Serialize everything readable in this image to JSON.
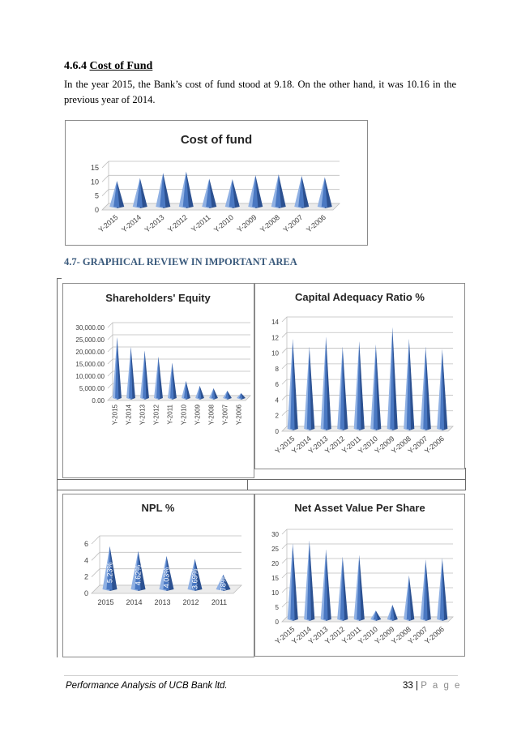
{
  "heading": {
    "number": "4.6.4",
    "title": "Cost of Fund"
  },
  "intro": "In the year 2015, the Bank’s cost of fund stood at 9.18. On the other hand, it was 10.16 in the previous year of 2014.",
  "subheading": "4.7- GRAPHICAL REVIEW IN IMPORTANT AREA",
  "footer": {
    "left": "Performance Analysis of UCB Bank ltd.",
    "page_num": "33",
    "separator": "|",
    "page_word": "P a g e"
  },
  "colors": {
    "bar": "#4a78c2",
    "bar_dark": "#2c5191",
    "bar_light": "#8fb0e3",
    "grid": "#bfbfbf",
    "text": "#404040"
  },
  "chart_data": [
    {
      "id": "cost",
      "type": "bar",
      "title": "Cost of fund",
      "categories": [
        "Y-2015",
        "Y-2014",
        "Y-2013",
        "Y-2012",
        "Y-2011",
        "Y-2010",
        "Y-2009",
        "Y-2008",
        "Y-2007",
        "Y-2006"
      ],
      "values": [
        9.18,
        10.16,
        12,
        12.5,
        10,
        9.8,
        11.2,
        11.5,
        11,
        10.5
      ],
      "ylim": [
        0,
        15
      ],
      "yticks": [
        "0",
        "5",
        "10",
        "15"
      ]
    },
    {
      "id": "equity",
      "type": "bar",
      "title": "Shareholders'  Equity",
      "categories": [
        "Y-2015",
        "Y-2014",
        "Y-2013",
        "Y-2012",
        "Y-2011",
        "Y-2010",
        "Y-2009",
        "Y-2008",
        "Y-2007",
        "Y-2006"
      ],
      "values": [
        25000,
        21000,
        19500,
        17000,
        14500,
        7000,
        5000,
        4000,
        3000,
        2000
      ],
      "ylim": [
        0,
        30000
      ],
      "yticks": [
        "0.00",
        "5,000.00",
        "10,000.00",
        "15,000.00",
        "20,000.00",
        "25,000.00",
        "30,000.00"
      ]
    },
    {
      "id": "car",
      "type": "bar",
      "title": "Capital  Adequacy  Ratio %",
      "categories": [
        "Y-2015",
        "Y-2014",
        "Y-2013",
        "Y-2012",
        "Y-2011",
        "Y-2010",
        "Y-2009",
        "Y-2008",
        "Y-2007",
        "Y-2006"
      ],
      "values": [
        11.5,
        10.5,
        11.8,
        10.5,
        11.2,
        10.8,
        13,
        11.5,
        10.5,
        10.2
      ],
      "ylim": [
        0,
        14
      ],
      "yticks": [
        "0",
        "2",
        "4",
        "6",
        "8",
        "10",
        "12",
        "14"
      ]
    },
    {
      "id": "npl",
      "type": "bar",
      "title": "NPL %",
      "categories": [
        "2015",
        "2014",
        "2013",
        "2012",
        "2011"
      ],
      "values": [
        5.23,
        4.62,
        4.03,
        3.69,
        1.78
      ],
      "data_labels": [
        "5.23%",
        "4.62%",
        "4.03%",
        "3.69%",
        "1.78%"
      ],
      "ylim": [
        0,
        6
      ],
      "yticks": [
        "0",
        "2",
        "4",
        "6"
      ]
    },
    {
      "id": "nav",
      "type": "bar",
      "title": "Net Asset Value Per Share",
      "categories": [
        "Y-2015",
        "Y-2014",
        "Y-2013",
        "Y-2012",
        "Y-2011",
        "Y-2010",
        "Y-2009",
        "Y-2008",
        "Y-2007",
        "Y-2006"
      ],
      "values": [
        26,
        27,
        24,
        21.5,
        22,
        3,
        5,
        15,
        20.5,
        21
      ],
      "ylim": [
        0,
        30
      ],
      "yticks": [
        "0",
        "5",
        "10",
        "15",
        "20",
        "25",
        "30"
      ]
    }
  ]
}
